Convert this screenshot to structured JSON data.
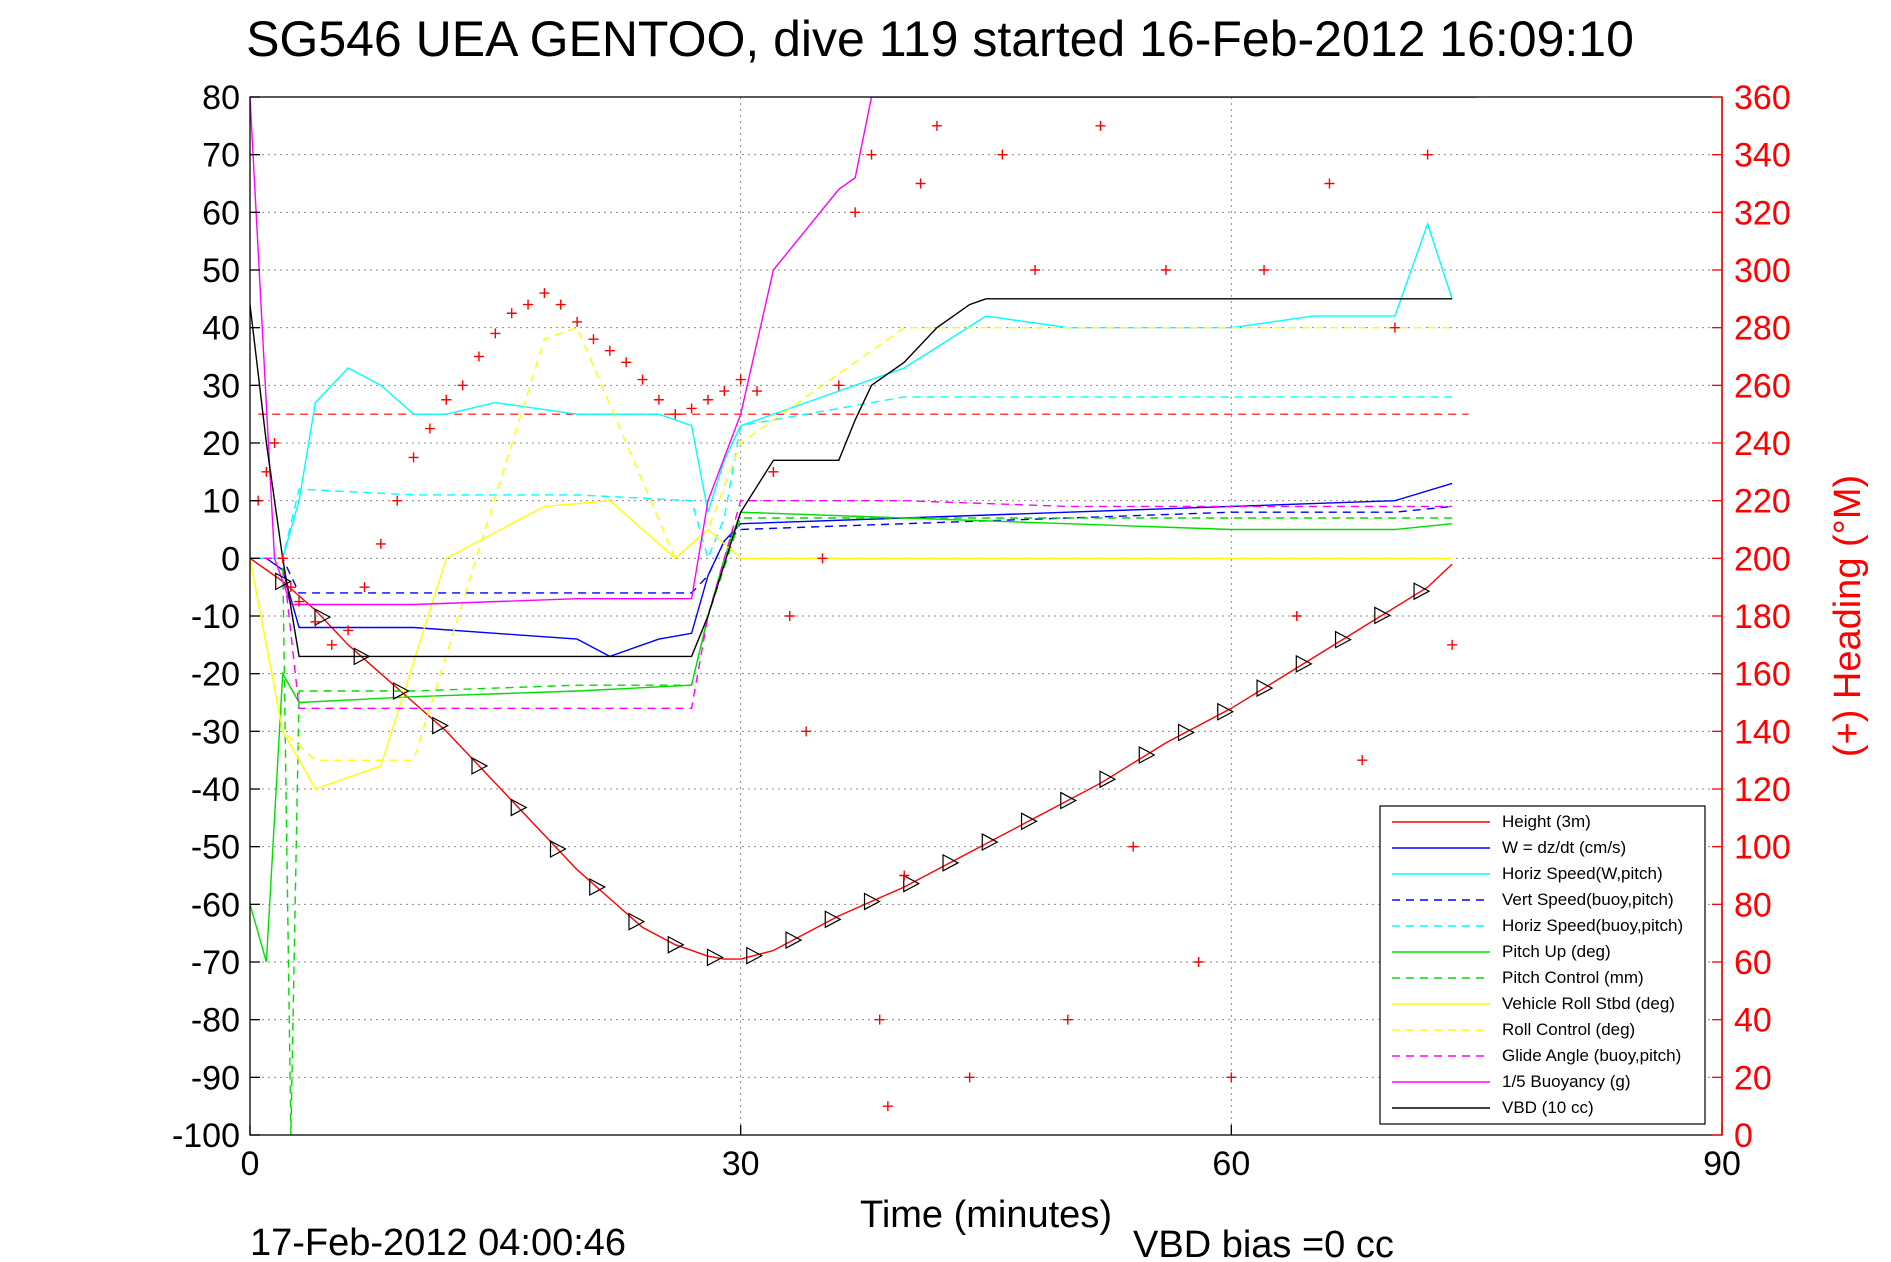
{
  "chart_data": {
    "type": "line",
    "title": "SG546 UEA GENTOO, dive 119 started 16-Feb-2012 16:09:10",
    "xlabel": "Time (minutes)",
    "ylabel": "",
    "y2label": "(+) Heading (°M)",
    "xlim": [
      0,
      90
    ],
    "ylim": [
      -100,
      80
    ],
    "y2lim": [
      0,
      360
    ],
    "xticks": [
      "0",
      "30",
      "60",
      "90"
    ],
    "yticks": [
      "80",
      "70",
      "60",
      "50",
      "40",
      "30",
      "20",
      "10",
      "0",
      "-10",
      "-20",
      "-30",
      "-40",
      "-50",
      "-60",
      "-70",
      "-80",
      "-90",
      "-100"
    ],
    "y2ticks": [
      "360",
      "340",
      "320",
      "300",
      "280",
      "260",
      "240",
      "220",
      "200",
      "180",
      "160",
      "140",
      "120",
      "100",
      "80",
      "60",
      "40",
      "20",
      "0"
    ],
    "grid": true,
    "legend_position": "bottom-right",
    "footer_left": "17-Feb-2012 04:00:46",
    "footer_right": "VBD bias =0 cc",
    "colors": {
      "height": "#ff0000",
      "w": "#0000ff",
      "cyan": "#00ffff",
      "green": "#00dd00",
      "yellow": "#ffff00",
      "magenta": "#ff00ff",
      "black": "#000000",
      "heading": "#ff0000"
    },
    "legend": [
      {
        "label": "Height (3m)",
        "color": "#ff0000",
        "dash": false
      },
      {
        "label": "W = dz/dt (cm/s)",
        "color": "#0000ff",
        "dash": false
      },
      {
        "label": "Horiz Speed(W,pitch)",
        "color": "#00ffff",
        "dash": false
      },
      {
        "label": "Vert Speed(buoy,pitch)",
        "color": "#0000ff",
        "dash": true
      },
      {
        "label": "Horiz Speed(buoy,pitch)",
        "color": "#00ffff",
        "dash": true
      },
      {
        "label": "Pitch Up (deg)",
        "color": "#00dd00",
        "dash": false
      },
      {
        "label": "Pitch Control (mm)",
        "color": "#00dd00",
        "dash": true
      },
      {
        "label": "Vehicle Roll Stbd (deg)",
        "color": "#ffff00",
        "dash": false
      },
      {
        "label": "Roll Control (deg)",
        "color": "#ffff00",
        "dash": true
      },
      {
        "label": "Glide Angle (buoy,pitch)",
        "color": "#ff00ff",
        "dash": true
      },
      {
        "label": "1/5 Buoyancy (g)",
        "color": "#ff00ff",
        "dash": false
      },
      {
        "label": "VBD (10 cc)",
        "color": "#000000",
        "dash": false
      }
    ],
    "series": [
      {
        "name": "Height (3m)",
        "x": [
          0,
          2,
          4,
          6,
          8,
          10,
          12,
          14,
          16,
          18,
          20,
          22,
          24,
          26,
          28,
          29,
          30,
          32,
          36,
          40,
          44,
          48,
          52,
          56,
          60,
          64,
          68,
          72,
          73.5
        ],
        "y": [
          0,
          -4,
          -9,
          -15,
          -20,
          -25,
          -30,
          -36,
          -42,
          -48,
          -54,
          -59,
          -64,
          -67,
          -69,
          -69.5,
          -69.5,
          -68,
          -62,
          -57,
          -51,
          -45,
          -39,
          -32,
          -26,
          -19,
          -12,
          -5,
          -1
        ]
      },
      {
        "name": "W = dz/dt (cm/s)",
        "x": [
          0,
          1,
          2,
          3,
          5,
          10,
          15,
          20,
          22,
          25,
          27,
          28,
          29,
          30,
          40,
          50,
          60,
          70,
          73.5
        ],
        "y": [
          0,
          0,
          -2,
          -12,
          -12,
          -12,
          -13,
          -14,
          -17,
          -14,
          -13,
          -3,
          3,
          6,
          7,
          8,
          9,
          10,
          13
        ]
      },
      {
        "name": "Horiz Speed(W,pitch)",
        "x": [
          0,
          2,
          3,
          4,
          6,
          8,
          10,
          12,
          15,
          20,
          25,
          27,
          28,
          29,
          30,
          35,
          40,
          45,
          50,
          55,
          60,
          65,
          70,
          72,
          73.5
        ],
        "y": [
          0,
          0,
          10,
          27,
          33,
          30,
          25,
          25,
          27,
          25,
          25,
          23,
          8,
          17,
          23,
          28,
          33,
          42,
          40,
          40,
          40,
          42,
          42,
          58,
          45
        ]
      },
      {
        "name": "Vert Speed(buoy,pitch)",
        "x": [
          0,
          2,
          3,
          10,
          20,
          27,
          28,
          29,
          30,
          40,
          50,
          60,
          70,
          73.5
        ],
        "y": [
          0,
          0,
          -6,
          -6,
          -6,
          -6,
          -3,
          3,
          5,
          6,
          7,
          8,
          8,
          9
        ]
      },
      {
        "name": "Horiz Speed(buoy,pitch)",
        "x": [
          0,
          2,
          3,
          10,
          20,
          27,
          28,
          29,
          30,
          40,
          50,
          60,
          70,
          73.5
        ],
        "y": [
          0,
          0,
          12,
          11,
          11,
          10,
          0,
          7,
          23,
          28,
          28,
          28,
          28,
          28
        ]
      },
      {
        "name": "Pitch Up (deg)",
        "x": [
          0,
          1,
          2,
          3,
          10,
          20,
          27,
          28,
          29,
          30,
          40,
          50,
          60,
          70,
          73.5
        ],
        "y": [
          -60,
          -70,
          -20,
          -25,
          -24,
          -23,
          -22,
          -10,
          0,
          8,
          7,
          6,
          5,
          5,
          6
        ]
      },
      {
        "name": "Pitch Control (mm)",
        "x": [
          0,
          2,
          2.5,
          3,
          10,
          20,
          27,
          28,
          30,
          40,
          50,
          60,
          70,
          73.5
        ],
        "y": [
          0,
          0,
          -100,
          -23,
          -23,
          -22,
          -22,
          -10,
          7,
          7,
          7,
          7,
          7,
          7
        ]
      },
      {
        "name": "Vehicle Roll Stbd (deg)",
        "x": [
          0,
          2,
          4,
          8,
          12,
          18,
          22,
          26,
          28,
          30,
          40,
          50,
          60,
          70,
          73.5
        ],
        "y": [
          0,
          -30,
          -40,
          -36,
          0,
          9,
          10,
          0,
          5,
          0,
          0,
          0,
          0,
          0,
          0
        ]
      },
      {
        "name": "Roll Control (deg)",
        "x": [
          0,
          2,
          4,
          10,
          18,
          20,
          26,
          28,
          30,
          40,
          50,
          60,
          70,
          73.5
        ],
        "y": [
          0,
          -30,
          -35,
          -35,
          38,
          40,
          0,
          5,
          20,
          40,
          40,
          40,
          40,
          40
        ]
      },
      {
        "name": "Glide Angle (buoy,pitch)",
        "x": [
          0,
          2,
          3,
          10,
          20,
          27,
          28,
          30,
          40,
          50,
          60,
          70,
          73.5
        ],
        "y": [
          0,
          0,
          -26,
          -26,
          -26,
          -26,
          -10,
          10,
          10,
          9,
          9,
          9,
          9
        ]
      },
      {
        "name": "1/5 Buoyancy (g)",
        "x": [
          0,
          1.5,
          2.5,
          3,
          10,
          20,
          27,
          28,
          30,
          32,
          36,
          37,
          38,
          75
        ],
        "y": [
          80,
          0,
          -8,
          -8,
          -8,
          -7,
          -7,
          10,
          25,
          50,
          64,
          66,
          80,
          80
        ]
      },
      {
        "name": "VBD (10 cc)",
        "x": [
          0,
          1,
          2,
          3,
          20,
          27,
          28,
          30,
          32,
          34,
          36,
          37,
          38,
          40,
          42,
          44,
          45,
          50,
          60,
          70,
          73.5
        ],
        "y": [
          44,
          20,
          0,
          -17,
          -17,
          -17,
          -10,
          8,
          17,
          17,
          17,
          24,
          30,
          34,
          40,
          44,
          45,
          45,
          45,
          45,
          45
        ]
      }
    ],
    "reference_line": {
      "y": 25,
      "color": "#ff0000",
      "dash": true
    },
    "heading_points": {
      "axis": "y2",
      "color": "#ff0000",
      "marker": "+",
      "x": [
        0.5,
        1,
        1.5,
        2,
        2.5,
        3,
        4,
        5,
        6,
        7,
        8,
        9,
        10,
        11,
        12,
        13,
        14,
        15,
        16,
        17,
        18,
        19,
        20,
        21,
        22,
        23,
        24,
        25,
        26,
        27,
        28,
        29,
        30,
        31,
        32,
        33,
        34,
        35,
        36,
        37,
        38,
        38.5,
        39,
        40,
        41,
        42,
        44,
        46,
        48,
        50,
        52,
        54,
        56,
        58,
        60,
        62,
        64,
        66,
        68,
        70,
        72,
        73.5
      ],
      "y": [
        220,
        230,
        240,
        200,
        190,
        185,
        178,
        170,
        175,
        190,
        205,
        220,
        235,
        245,
        255,
        260,
        270,
        278,
        285,
        288,
        292,
        288,
        282,
        276,
        272,
        268,
        262,
        255,
        250,
        252,
        255,
        258,
        262,
        258,
        230,
        180,
        140,
        200,
        260,
        320,
        340,
        40,
        10,
        90,
        330,
        350,
        20,
        340,
        300,
        40,
        350,
        100,
        300,
        60,
        20,
        300,
        180,
        330,
        130,
        280,
        340,
        170
      ]
    }
  }
}
